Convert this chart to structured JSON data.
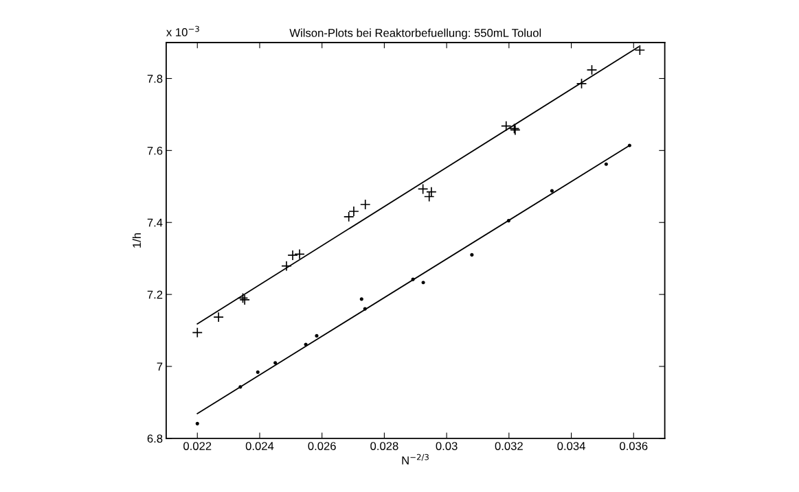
{
  "chart_data": {
    "type": "scatter",
    "title": "Wilson-Plots bei Reaktorbefuellung: 550mL Toluol",
    "xlabel": "N$^{−2/3}$",
    "ylabel": "1/h",
    "annotations": [
      "x 10$^{−3}$"
    ],
    "series": [
      {
        "marker": "cross",
        "color": "#000000",
        "x": [
          0.022,
          0.02268,
          0.02346,
          0.02352,
          0.02486,
          0.02506,
          0.02528,
          0.02686,
          0.02702,
          0.02739,
          0.02924,
          0.02944,
          0.02951,
          0.03191,
          0.03217,
          0.0322,
          0.03433,
          0.03466,
          0.0362
        ],
        "values": [
          7.094,
          7.137,
          7.19,
          7.185,
          7.279,
          7.309,
          7.312,
          7.416,
          7.431,
          7.45,
          7.493,
          7.472,
          7.485,
          7.668,
          7.661,
          7.657,
          7.786,
          7.824,
          7.879
        ]
      },
      {
        "type": "line",
        "marker": "none",
        "color": "#000000",
        "x": [
          0.022,
          0.03616
        ],
        "values": [
          7.118,
          7.888
        ]
      },
      {
        "marker": "circle",
        "color": "#000000",
        "x": [
          0.022,
          0.02338,
          0.02394,
          0.0245,
          0.02548,
          0.02583,
          0.02727,
          0.02738,
          0.02892,
          0.02925,
          0.03081,
          0.03199,
          0.03338,
          0.03512,
          0.03587
        ],
        "values": [
          6.841,
          6.943,
          6.984,
          7.01,
          7.061,
          7.085,
          7.187,
          7.16,
          7.242,
          7.233,
          7.31,
          7.405,
          7.488,
          7.562,
          7.614
        ]
      },
      {
        "type": "line",
        "marker": "none",
        "color": "#000000",
        "x": [
          0.022,
          0.03587
        ],
        "values": [
          6.869,
          7.614
        ]
      }
    ],
    "xlim": [
      0.021,
      0.037
    ],
    "xticks": [
      0.022,
      0.024,
      0.026,
      0.028,
      0.03,
      0.032,
      0.034,
      0.036
    ],
    "ylim": [
      6.8,
      7.9
    ],
    "yticks": [
      6.8,
      7,
      7.2,
      7.4,
      7.6,
      7.8
    ],
    "grid": false,
    "legend": false
  }
}
